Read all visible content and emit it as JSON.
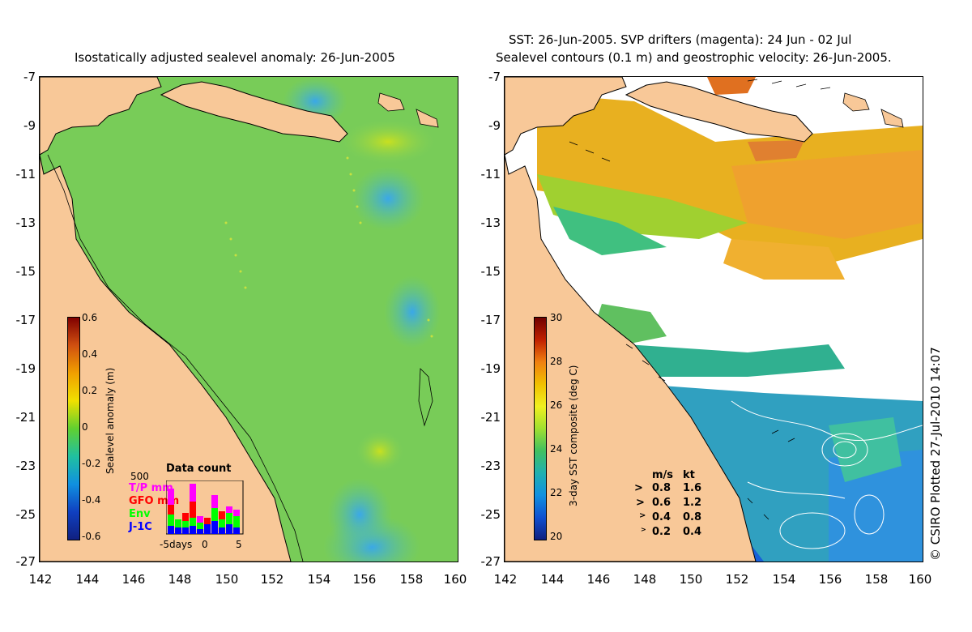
{
  "left_panel": {
    "title": "Isostatically adjusted sealevel anomaly: 26-Jun-2005",
    "colorbar": {
      "ticks": [
        "0.6",
        "0.4",
        "0.2",
        "0",
        "-0.2",
        "-0.4",
        "-0.6"
      ],
      "label": "Sealevel anomaly (m)"
    },
    "data_count": {
      "title": "Data count",
      "ymax_label": "500",
      "series": [
        "T/P mm",
        "GFO mm",
        "Env",
        "J-1C"
      ],
      "series_colors": [
        "#ff00ff",
        "#ff0000",
        "#00ff00",
        "#0000ff"
      ],
      "xlabels": [
        "-5days",
        "0",
        "5"
      ]
    }
  },
  "right_panel": {
    "title_line1": "SST: 26-Jun-2005. SVP drifters (magenta): 24 Jun - 02 Jul",
    "title_line2": "Sealevel contours (0.1 m) and geostrophic velocity: 26-Jun-2005.",
    "colorbar": {
      "ticks": [
        "30",
        "28",
        "26",
        "24",
        "22",
        "20"
      ],
      "label": "3-day SST composite (deg C)"
    },
    "velocity_legend": {
      "header_ms": "m/s",
      "header_kt": "kt",
      "rows": [
        {
          "ms": "0.8",
          "kt": "1.6"
        },
        {
          "ms": "0.6",
          "kt": "1.2"
        },
        {
          "ms": "0.4",
          "kt": "0.8"
        },
        {
          "ms": "0.2",
          "kt": "0.4"
        }
      ]
    }
  },
  "axes": {
    "y_ticks": [
      "-7",
      "-9",
      "-11",
      "-13",
      "-15",
      "-17",
      "-19",
      "-21",
      "-23",
      "-25",
      "-27"
    ],
    "x_ticks": [
      "142",
      "144",
      "146",
      "148",
      "150",
      "152",
      "154",
      "156",
      "158",
      "160"
    ]
  },
  "colors": {
    "land": "#f8c898",
    "sea_green": "#78d05a",
    "warm": "#f0b020",
    "cold": "#2060e0"
  },
  "copyright": "© CSIRO Plotted 27-Jul-2010 14:07"
}
